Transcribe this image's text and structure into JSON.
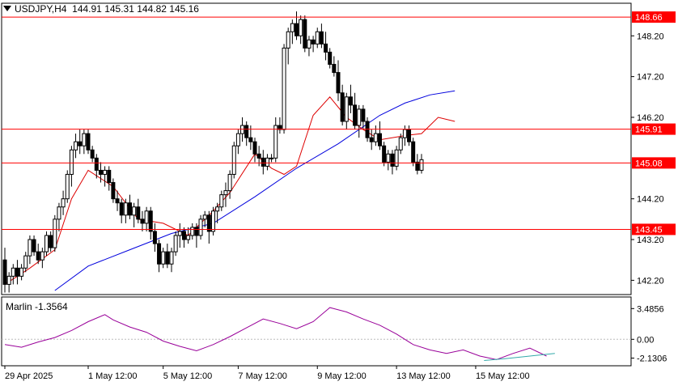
{
  "symbol": "USDJPY,H4",
  "ohlc": "144.91 145.31 144.82 145.16",
  "indicator_label": "Marlin -1.3564",
  "colors": {
    "level": "#ff0000",
    "ma_slow": "#0000dd",
    "ma_fast": "#dd0000",
    "osc": "#990099",
    "osc_signal": "#33aaaa",
    "up": "#ffffff",
    "down": "#000000"
  },
  "chart_data": {
    "type": "candlestick",
    "y_ticks": [
      "148.20",
      "147.20",
      "146.20",
      "144.20",
      "143.20",
      "142.20"
    ],
    "y_range": [
      141.85,
      149.0
    ],
    "levels": [
      {
        "value": 148.66,
        "label": "148.66"
      },
      {
        "value": 145.91,
        "label": "145.91"
      },
      {
        "value": 145.08,
        "label": "145.08"
      },
      {
        "value": 143.45,
        "label": "143.45"
      }
    ],
    "x_labels": [
      "29 Apr 2025",
      "1 May 12:00",
      "5 May 12:00",
      "7 May 12:00",
      "9 May 12:00",
      "13 May 12:00",
      "15 May 12:00"
    ],
    "x_label_bars": [
      0,
      20,
      38,
      56,
      75,
      94,
      113
    ],
    "candles": [
      [
        142.7,
        143.0,
        141.9,
        142.1
      ],
      [
        142.1,
        142.4,
        141.9,
        142.3
      ],
      [
        142.3,
        142.6,
        142.1,
        142.5
      ],
      [
        142.5,
        142.7,
        142.1,
        142.3
      ],
      [
        142.3,
        142.6,
        142.2,
        142.5
      ],
      [
        142.5,
        142.9,
        142.4,
        142.8
      ],
      [
        142.8,
        143.3,
        142.6,
        143.2
      ],
      [
        143.2,
        143.3,
        142.8,
        142.9
      ],
      [
        142.9,
        143.1,
        142.6,
        142.7
      ],
      [
        142.7,
        143.0,
        142.5,
        142.9
      ],
      [
        142.9,
        143.4,
        142.8,
        143.3
      ],
      [
        143.3,
        143.4,
        142.9,
        143.0
      ],
      [
        143.0,
        143.8,
        142.9,
        143.7
      ],
      [
        143.7,
        144.1,
        143.4,
        144.0
      ],
      [
        144.0,
        144.4,
        143.8,
        144.2
      ],
      [
        144.2,
        144.9,
        144.1,
        144.8
      ],
      [
        144.8,
        145.5,
        144.5,
        145.4
      ],
      [
        145.4,
        145.8,
        145.2,
        145.6
      ],
      [
        145.6,
        145.9,
        145.3,
        145.5
      ],
      [
        145.5,
        145.9,
        145.3,
        145.8
      ],
      [
        145.8,
        145.9,
        145.3,
        145.4
      ],
      [
        145.4,
        145.5,
        145.1,
        145.2
      ],
      [
        145.2,
        145.3,
        144.7,
        144.9
      ],
      [
        144.9,
        145.1,
        144.6,
        144.8
      ],
      [
        144.8,
        145.0,
        144.5,
        144.9
      ],
      [
        144.9,
        145.0,
        144.4,
        144.6
      ],
      [
        144.6,
        144.7,
        144.1,
        144.2
      ],
      [
        144.2,
        144.4,
        143.9,
        144.1
      ],
      [
        144.1,
        144.2,
        143.6,
        143.8
      ],
      [
        143.8,
        144.2,
        143.6,
        144.1
      ],
      [
        144.1,
        144.3,
        143.7,
        143.8
      ],
      [
        143.8,
        144.1,
        143.5,
        144.0
      ],
      [
        144.0,
        144.2,
        143.6,
        143.7
      ],
      [
        143.7,
        143.9,
        143.4,
        143.6
      ],
      [
        143.6,
        144.0,
        143.4,
        143.9
      ],
      [
        143.9,
        144.0,
        143.2,
        143.4
      ],
      [
        143.4,
        143.6,
        142.9,
        143.1
      ],
      [
        143.1,
        143.2,
        142.4,
        142.6
      ],
      [
        142.6,
        143.0,
        142.5,
        142.9
      ],
      [
        142.9,
        143.1,
        142.5,
        142.6
      ],
      [
        142.6,
        143.0,
        142.4,
        142.9
      ],
      [
        142.9,
        143.4,
        142.8,
        143.3
      ],
      [
        143.3,
        143.6,
        143.0,
        143.4
      ],
      [
        143.4,
        143.5,
        143.0,
        143.2
      ],
      [
        143.2,
        143.5,
        143.1,
        143.3
      ],
      [
        143.3,
        143.6,
        143.2,
        143.5
      ],
      [
        143.5,
        143.6,
        143.0,
        143.3
      ],
      [
        143.3,
        143.8,
        143.2,
        143.7
      ],
      [
        143.7,
        143.9,
        143.5,
        143.8
      ],
      [
        143.8,
        143.9,
        143.1,
        143.4
      ],
      [
        143.4,
        144.0,
        143.3,
        143.9
      ],
      [
        143.9,
        144.1,
        143.6,
        144.0
      ],
      [
        144.0,
        144.4,
        143.9,
        144.3
      ],
      [
        144.3,
        144.6,
        144.0,
        144.4
      ],
      [
        144.4,
        144.9,
        144.2,
        144.8
      ],
      [
        144.8,
        145.6,
        144.7,
        145.5
      ],
      [
        145.5,
        145.9,
        145.3,
        145.8
      ],
      [
        145.8,
        146.2,
        145.6,
        146.0
      ],
      [
        146.0,
        146.1,
        145.5,
        145.7
      ],
      [
        145.7,
        146.0,
        145.4,
        145.6
      ],
      [
        145.6,
        145.7,
        145.1,
        145.3
      ],
      [
        145.3,
        145.5,
        145.0,
        145.2
      ],
      [
        145.2,
        145.4,
        144.8,
        145.0
      ],
      [
        145.0,
        145.3,
        144.9,
        145.2
      ],
      [
        145.2,
        145.3,
        145.1,
        145.2
      ],
      [
        145.2,
        146.2,
        145.1,
        146.0
      ],
      [
        146.0,
        146.2,
        145.8,
        145.9
      ],
      [
        145.9,
        148.0,
        145.8,
        147.9
      ],
      [
        147.9,
        148.4,
        147.5,
        148.3
      ],
      [
        148.3,
        148.6,
        148.0,
        148.5
      ],
      [
        148.5,
        148.8,
        148.1,
        148.2
      ],
      [
        148.2,
        148.7,
        148.0,
        148.6
      ],
      [
        148.6,
        148.7,
        147.8,
        147.9
      ],
      [
        147.9,
        148.2,
        147.7,
        148.1
      ],
      [
        148.1,
        148.2,
        147.8,
        148.0
      ],
      [
        148.0,
        148.4,
        147.9,
        148.3
      ],
      [
        148.3,
        148.5,
        147.9,
        148.0
      ],
      [
        148.0,
        148.3,
        147.6,
        147.8
      ],
      [
        147.8,
        147.9,
        147.4,
        147.5
      ],
      [
        147.5,
        147.7,
        147.2,
        147.3
      ],
      [
        147.3,
        147.6,
        146.6,
        146.8
      ],
      [
        146.8,
        147.0,
        146.0,
        146.1
      ],
      [
        146.1,
        146.8,
        145.9,
        146.7
      ],
      [
        146.7,
        147.0,
        146.3,
        146.5
      ],
      [
        146.5,
        146.8,
        145.9,
        146.0
      ],
      [
        146.0,
        146.5,
        145.7,
        146.4
      ],
      [
        146.4,
        146.5,
        145.9,
        146.1
      ],
      [
        146.1,
        146.2,
        145.6,
        145.7
      ],
      [
        145.7,
        145.9,
        145.4,
        145.6
      ],
      [
        145.6,
        146.0,
        145.5,
        145.8
      ],
      [
        145.8,
        146.1,
        145.4,
        145.5
      ],
      [
        145.5,
        145.6,
        145.0,
        145.1
      ],
      [
        145.1,
        145.4,
        144.9,
        145.3
      ],
      [
        145.3,
        145.4,
        144.8,
        145.0
      ],
      [
        145.0,
        145.5,
        144.9,
        145.4
      ],
      [
        145.4,
        145.8,
        145.3,
        145.7
      ],
      [
        145.7,
        146.0,
        145.5,
        145.9
      ],
      [
        145.9,
        146.0,
        145.5,
        145.6
      ],
      [
        145.6,
        145.7,
        145.0,
        145.1
      ],
      [
        145.1,
        145.3,
        144.8,
        144.9
      ],
      [
        144.9,
        145.3,
        144.82,
        145.16
      ]
    ],
    "ma_fast": [
      [
        0,
        142.1
      ],
      [
        6,
        142.5
      ],
      [
        12,
        142.95
      ],
      [
        16,
        144.2
      ],
      [
        20,
        144.9
      ],
      [
        26,
        144.5
      ],
      [
        32,
        143.7
      ],
      [
        38,
        143.6
      ],
      [
        44,
        143.3
      ],
      [
        50,
        143.9
      ],
      [
        54,
        144.35
      ],
      [
        60,
        145.3
      ],
      [
        64,
        144.95
      ],
      [
        67,
        144.8
      ],
      [
        70,
        145.0
      ],
      [
        74,
        146.25
      ],
      [
        78,
        146.7
      ],
      [
        82,
        146.2
      ],
      [
        86,
        145.9
      ],
      [
        90,
        145.65
      ],
      [
        96,
        145.75
      ],
      [
        100,
        145.8
      ],
      [
        104,
        146.2
      ],
      [
        108,
        146.1
      ]
    ],
    "ma_slow": [
      [
        12,
        141.95
      ],
      [
        20,
        142.55
      ],
      [
        30,
        142.95
      ],
      [
        40,
        143.35
      ],
      [
        50,
        143.6
      ],
      [
        60,
        144.25
      ],
      [
        70,
        144.95
      ],
      [
        80,
        145.55
      ],
      [
        90,
        146.25
      ],
      [
        96,
        146.55
      ],
      [
        102,
        146.75
      ],
      [
        108,
        146.85
      ]
    ],
    "oscillator": {
      "ticks": [
        "3.4856",
        "0.00",
        "-2.1306"
      ],
      "tick_values": [
        3.4856,
        0.0,
        -2.1306
      ],
      "range": [
        -3.0,
        4.8
      ],
      "zero_line": 0.0,
      "series": [
        [
          0,
          -0.6
        ],
        [
          4,
          -0.9
        ],
        [
          8,
          -0.3
        ],
        [
          12,
          0.2
        ],
        [
          16,
          1.0
        ],
        [
          20,
          2.0
        ],
        [
          24,
          2.8
        ],
        [
          26,
          2.2
        ],
        [
          30,
          1.4
        ],
        [
          34,
          0.8
        ],
        [
          38,
          -0.2
        ],
        [
          42,
          -0.8
        ],
        [
          46,
          -1.3
        ],
        [
          50,
          -0.6
        ],
        [
          54,
          0.3
        ],
        [
          58,
          1.3
        ],
        [
          62,
          2.3
        ],
        [
          66,
          1.8
        ],
        [
          70,
          1.2
        ],
        [
          74,
          2.0
        ],
        [
          78,
          3.6
        ],
        [
          82,
          3.1
        ],
        [
          86,
          2.3
        ],
        [
          90,
          1.6
        ],
        [
          94,
          0.6
        ],
        [
          98,
          -0.6
        ],
        [
          102,
          -1.2
        ],
        [
          106,
          -1.6
        ],
        [
          110,
          -1.2
        ],
        [
          114,
          -1.9
        ],
        [
          118,
          -2.3
        ],
        [
          122,
          -1.6
        ],
        [
          126,
          -1.0
        ],
        [
          130,
          -1.9
        ]
      ],
      "signal": [
        [
          115,
          -2.4
        ],
        [
          120,
          -2.2
        ],
        [
          126,
          -1.9
        ],
        [
          132,
          -1.6
        ]
      ]
    }
  }
}
